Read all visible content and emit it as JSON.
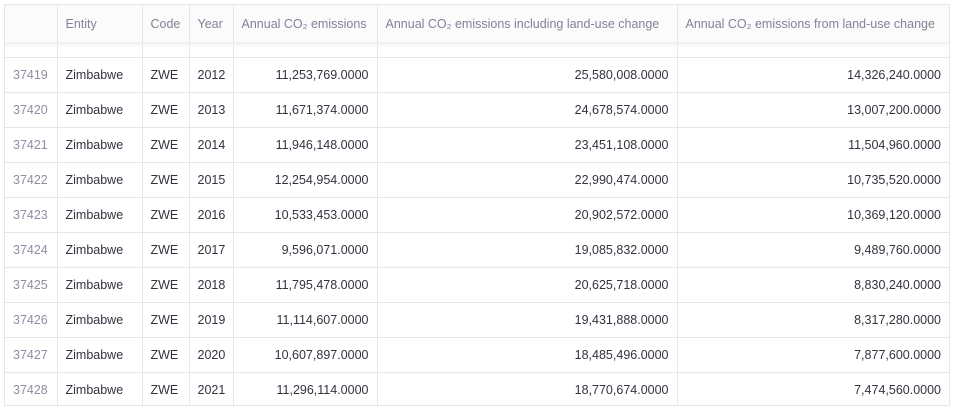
{
  "table": {
    "columns": [
      {
        "key": "idx",
        "label": ""
      },
      {
        "key": "entity",
        "label": "Entity"
      },
      {
        "key": "code",
        "label": "Code"
      },
      {
        "key": "year",
        "label": "Year"
      },
      {
        "key": "annual",
        "label": "Annual CO₂ emissions"
      },
      {
        "key": "incl_luc",
        "label": "Annual CO₂ emissions including land-use change"
      },
      {
        "key": "from_luc",
        "label": "Annual CO₂ emissions from land-use change"
      }
    ],
    "rows": [
      {
        "idx": "37419",
        "entity": "Zimbabwe",
        "code": "ZWE",
        "year": "2012",
        "annual": "11,253,769.0000",
        "incl_luc": "25,580,008.0000",
        "from_luc": "14,326,240.0000"
      },
      {
        "idx": "37420",
        "entity": "Zimbabwe",
        "code": "ZWE",
        "year": "2013",
        "annual": "11,671,374.0000",
        "incl_luc": "24,678,574.0000",
        "from_luc": "13,007,200.0000"
      },
      {
        "idx": "37421",
        "entity": "Zimbabwe",
        "code": "ZWE",
        "year": "2014",
        "annual": "11,946,148.0000",
        "incl_luc": "23,451,108.0000",
        "from_luc": "11,504,960.0000"
      },
      {
        "idx": "37422",
        "entity": "Zimbabwe",
        "code": "ZWE",
        "year": "2015",
        "annual": "12,254,954.0000",
        "incl_luc": "22,990,474.0000",
        "from_luc": "10,735,520.0000"
      },
      {
        "idx": "37423",
        "entity": "Zimbabwe",
        "code": "ZWE",
        "year": "2016",
        "annual": "10,533,453.0000",
        "incl_luc": "20,902,572.0000",
        "from_luc": "10,369,120.0000"
      },
      {
        "idx": "37424",
        "entity": "Zimbabwe",
        "code": "ZWE",
        "year": "2017",
        "annual": "9,596,071.0000",
        "incl_luc": "19,085,832.0000",
        "from_luc": "9,489,760.0000"
      },
      {
        "idx": "37425",
        "entity": "Zimbabwe",
        "code": "ZWE",
        "year": "2018",
        "annual": "11,795,478.0000",
        "incl_luc": "20,625,718.0000",
        "from_luc": "8,830,240.0000"
      },
      {
        "idx": "37426",
        "entity": "Zimbabwe",
        "code": "ZWE",
        "year": "2019",
        "annual": "11,114,607.0000",
        "incl_luc": "19,431,888.0000",
        "from_luc": "8,317,280.0000"
      },
      {
        "idx": "37427",
        "entity": "Zimbabwe",
        "code": "ZWE",
        "year": "2020",
        "annual": "10,607,897.0000",
        "incl_luc": "18,485,496.0000",
        "from_luc": "7,877,600.0000"
      },
      {
        "idx": "37428",
        "entity": "Zimbabwe",
        "code": "ZWE",
        "year": "2021",
        "annual": "11,296,114.0000",
        "incl_luc": "18,770,674.0000",
        "from_luc": "7,474,560.0000"
      }
    ]
  }
}
